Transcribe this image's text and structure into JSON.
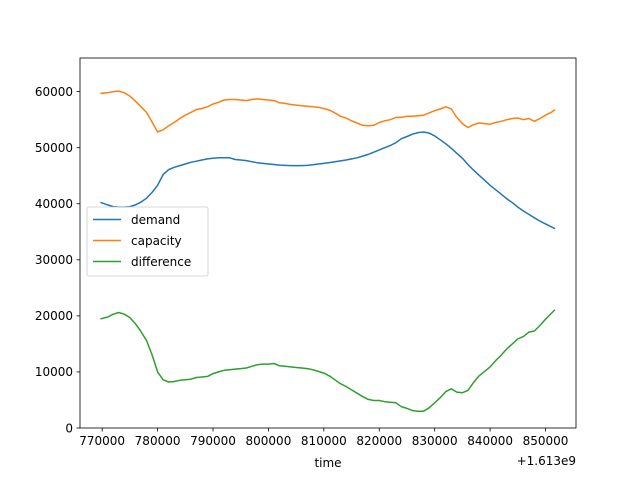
{
  "chart_data": {
    "type": "line",
    "title": "",
    "xlabel": "time",
    "ylabel": "",
    "x_offset_label": "+1.613e9",
    "xlim": [
      766000,
      855500
    ],
    "ylim": [
      0,
      66000
    ],
    "x_ticks": [
      770000,
      780000,
      790000,
      800000,
      810000,
      820000,
      830000,
      840000,
      850000
    ],
    "x_tick_labels": [
      "770000",
      "780000",
      "790000",
      "800000",
      "810000",
      "820000",
      "830000",
      "840000",
      "850000"
    ],
    "y_ticks": [
      0,
      10000,
      20000,
      30000,
      40000,
      50000,
      60000
    ],
    "y_tick_labels": [
      "0",
      "10000",
      "20000",
      "30000",
      "40000",
      "50000",
      "60000"
    ],
    "grid": false,
    "legend_position": "center-left",
    "series": [
      {
        "name": "demand",
        "color": "#1f77b4",
        "points": [
          [
            769800,
            40200
          ],
          [
            771000,
            39800
          ],
          [
            772000,
            39500
          ],
          [
            773000,
            39400
          ],
          [
            774000,
            39400
          ],
          [
            775000,
            39500
          ],
          [
            776000,
            39800
          ],
          [
            777000,
            40300
          ],
          [
            778000,
            41000
          ],
          [
            779000,
            42000
          ],
          [
            780000,
            43300
          ],
          [
            781000,
            45200
          ],
          [
            782000,
            46100
          ],
          [
            783000,
            46500
          ],
          [
            784000,
            46800
          ],
          [
            785000,
            47100
          ],
          [
            786000,
            47400
          ],
          [
            787000,
            47600
          ],
          [
            788000,
            47800
          ],
          [
            789000,
            48000
          ],
          [
            790000,
            48100
          ],
          [
            791000,
            48200
          ],
          [
            792000,
            48200
          ],
          [
            793000,
            48200
          ],
          [
            794000,
            47900
          ],
          [
            795000,
            47800
          ],
          [
            796000,
            47700
          ],
          [
            797000,
            47500
          ],
          [
            798000,
            47300
          ],
          [
            799000,
            47200
          ],
          [
            800000,
            47100
          ],
          [
            801000,
            47000
          ],
          [
            802000,
            46900
          ],
          [
            803000,
            46850
          ],
          [
            804000,
            46800
          ],
          [
            805000,
            46800
          ],
          [
            806000,
            46800
          ],
          [
            807000,
            46850
          ],
          [
            808000,
            46950
          ],
          [
            809000,
            47100
          ],
          [
            810000,
            47200
          ],
          [
            811000,
            47350
          ],
          [
            812000,
            47500
          ],
          [
            813000,
            47650
          ],
          [
            814000,
            47800
          ],
          [
            815000,
            48000
          ],
          [
            816000,
            48200
          ],
          [
            817000,
            48500
          ],
          [
            818000,
            48800
          ],
          [
            819000,
            49200
          ],
          [
            820000,
            49600
          ],
          [
            821000,
            50000
          ],
          [
            822000,
            50400
          ],
          [
            823000,
            50900
          ],
          [
            824000,
            51600
          ],
          [
            825000,
            52000
          ],
          [
            826000,
            52400
          ],
          [
            827000,
            52700
          ],
          [
            828000,
            52800
          ],
          [
            829000,
            52600
          ],
          [
            830000,
            52100
          ],
          [
            831000,
            51400
          ],
          [
            832000,
            50700
          ],
          [
            833000,
            49900
          ],
          [
            834000,
            49000
          ],
          [
            835000,
            48100
          ],
          [
            836000,
            47000
          ],
          [
            837000,
            46000
          ],
          [
            838000,
            45100
          ],
          [
            839000,
            44200
          ],
          [
            840000,
            43300
          ],
          [
            841000,
            42500
          ],
          [
            842000,
            41700
          ],
          [
            843000,
            40900
          ],
          [
            844000,
            40200
          ],
          [
            845000,
            39400
          ],
          [
            846000,
            38700
          ],
          [
            847000,
            38100
          ],
          [
            848000,
            37500
          ],
          [
            849000,
            36900
          ],
          [
            850000,
            36400
          ],
          [
            851000,
            35900
          ],
          [
            851600,
            35600
          ]
        ]
      },
      {
        "name": "capacity",
        "color": "#ff7f0e",
        "points": [
          [
            769800,
            59700
          ],
          [
            771000,
            59800
          ],
          [
            772000,
            60000
          ],
          [
            773000,
            60100
          ],
          [
            774000,
            59800
          ],
          [
            775000,
            59200
          ],
          [
            776000,
            58300
          ],
          [
            777000,
            57300
          ],
          [
            778000,
            56300
          ],
          [
            779000,
            54600
          ],
          [
            780000,
            52800
          ],
          [
            781000,
            53200
          ],
          [
            782000,
            53900
          ],
          [
            783000,
            54500
          ],
          [
            784000,
            55200
          ],
          [
            785000,
            55800
          ],
          [
            786000,
            56300
          ],
          [
            787000,
            56800
          ],
          [
            788000,
            57000
          ],
          [
            789000,
            57300
          ],
          [
            790000,
            57800
          ],
          [
            791000,
            58100
          ],
          [
            792000,
            58500
          ],
          [
            793000,
            58600
          ],
          [
            794000,
            58600
          ],
          [
            795000,
            58500
          ],
          [
            796000,
            58400
          ],
          [
            797000,
            58600
          ],
          [
            798000,
            58700
          ],
          [
            799000,
            58600
          ],
          [
            800000,
            58500
          ],
          [
            801000,
            58400
          ],
          [
            802000,
            58000
          ],
          [
            803000,
            57900
          ],
          [
            804000,
            57700
          ],
          [
            805000,
            57600
          ],
          [
            806000,
            57500
          ],
          [
            807000,
            57400
          ],
          [
            808000,
            57300
          ],
          [
            809000,
            57200
          ],
          [
            810000,
            57000
          ],
          [
            811000,
            56700
          ],
          [
            812000,
            56200
          ],
          [
            813000,
            55600
          ],
          [
            814000,
            55300
          ],
          [
            815000,
            54800
          ],
          [
            816000,
            54400
          ],
          [
            817000,
            54000
          ],
          [
            818000,
            53900
          ],
          [
            819000,
            54000
          ],
          [
            820000,
            54500
          ],
          [
            821000,
            54800
          ],
          [
            822000,
            55000
          ],
          [
            823000,
            55400
          ],
          [
            824000,
            55400
          ],
          [
            825000,
            55600
          ],
          [
            826000,
            55600
          ],
          [
            827000,
            55700
          ],
          [
            828000,
            55800
          ],
          [
            829000,
            56200
          ],
          [
            830000,
            56600
          ],
          [
            831000,
            56900
          ],
          [
            832000,
            57300
          ],
          [
            833000,
            56900
          ],
          [
            834000,
            55400
          ],
          [
            835000,
            54300
          ],
          [
            836000,
            53600
          ],
          [
            837000,
            54100
          ],
          [
            838000,
            54400
          ],
          [
            839000,
            54300
          ],
          [
            840000,
            54200
          ],
          [
            841000,
            54500
          ],
          [
            842000,
            54700
          ],
          [
            843000,
            55000
          ],
          [
            844000,
            55200
          ],
          [
            845000,
            55300
          ],
          [
            846000,
            55000
          ],
          [
            847000,
            55200
          ],
          [
            848000,
            54700
          ],
          [
            849000,
            55200
          ],
          [
            850000,
            55800
          ],
          [
            851000,
            56300
          ],
          [
            851600,
            56700
          ]
        ]
      },
      {
        "name": "difference",
        "color": "#2ca02c",
        "points": [
          [
            769800,
            19500
          ],
          [
            771000,
            19800
          ],
          [
            772000,
            20300
          ],
          [
            773000,
            20600
          ],
          [
            774000,
            20300
          ],
          [
            775000,
            19700
          ],
          [
            776000,
            18600
          ],
          [
            777000,
            17200
          ],
          [
            778000,
            15600
          ],
          [
            779000,
            13100
          ],
          [
            780000,
            10000
          ],
          [
            781000,
            8600
          ],
          [
            782000,
            8200
          ],
          [
            783000,
            8300
          ],
          [
            784000,
            8500
          ],
          [
            785000,
            8600
          ],
          [
            786000,
            8700
          ],
          [
            787000,
            9000
          ],
          [
            788000,
            9100
          ],
          [
            789000,
            9200
          ],
          [
            790000,
            9700
          ],
          [
            791000,
            10000
          ],
          [
            792000,
            10300
          ],
          [
            793000,
            10400
          ],
          [
            794000,
            10500
          ],
          [
            795000,
            10600
          ],
          [
            796000,
            10700
          ],
          [
            797000,
            11000
          ],
          [
            798000,
            11300
          ],
          [
            799000,
            11400
          ],
          [
            800000,
            11400
          ],
          [
            801000,
            11500
          ],
          [
            802000,
            11100
          ],
          [
            803000,
            11000
          ],
          [
            804000,
            10900
          ],
          [
            805000,
            10800
          ],
          [
            806000,
            10700
          ],
          [
            807000,
            10600
          ],
          [
            808000,
            10400
          ],
          [
            809000,
            10100
          ],
          [
            810000,
            9800
          ],
          [
            811000,
            9300
          ],
          [
            812000,
            8600
          ],
          [
            813000,
            7900
          ],
          [
            814000,
            7400
          ],
          [
            815000,
            6800
          ],
          [
            816000,
            6200
          ],
          [
            817000,
            5600
          ],
          [
            818000,
            5100
          ],
          [
            819000,
            4900
          ],
          [
            820000,
            4900
          ],
          [
            821000,
            4700
          ],
          [
            822000,
            4600
          ],
          [
            823000,
            4500
          ],
          [
            824000,
            3800
          ],
          [
            825000,
            3500
          ],
          [
            826000,
            3100
          ],
          [
            827000,
            3000
          ],
          [
            828000,
            3000
          ],
          [
            829000,
            3600
          ],
          [
            830000,
            4500
          ],
          [
            831000,
            5400
          ],
          [
            832000,
            6500
          ],
          [
            833000,
            7000
          ],
          [
            834000,
            6400
          ],
          [
            835000,
            6300
          ],
          [
            836000,
            6700
          ],
          [
            837000,
            8100
          ],
          [
            838000,
            9300
          ],
          [
            839000,
            10100
          ],
          [
            840000,
            10900
          ],
          [
            841000,
            12000
          ],
          [
            842000,
            13000
          ],
          [
            843000,
            14100
          ],
          [
            844000,
            15000
          ],
          [
            845000,
            15900
          ],
          [
            846000,
            16300
          ],
          [
            847000,
            17100
          ],
          [
            848000,
            17300
          ],
          [
            849000,
            18300
          ],
          [
            850000,
            19400
          ],
          [
            851000,
            20400
          ],
          [
            851600,
            21000
          ]
        ]
      }
    ]
  }
}
